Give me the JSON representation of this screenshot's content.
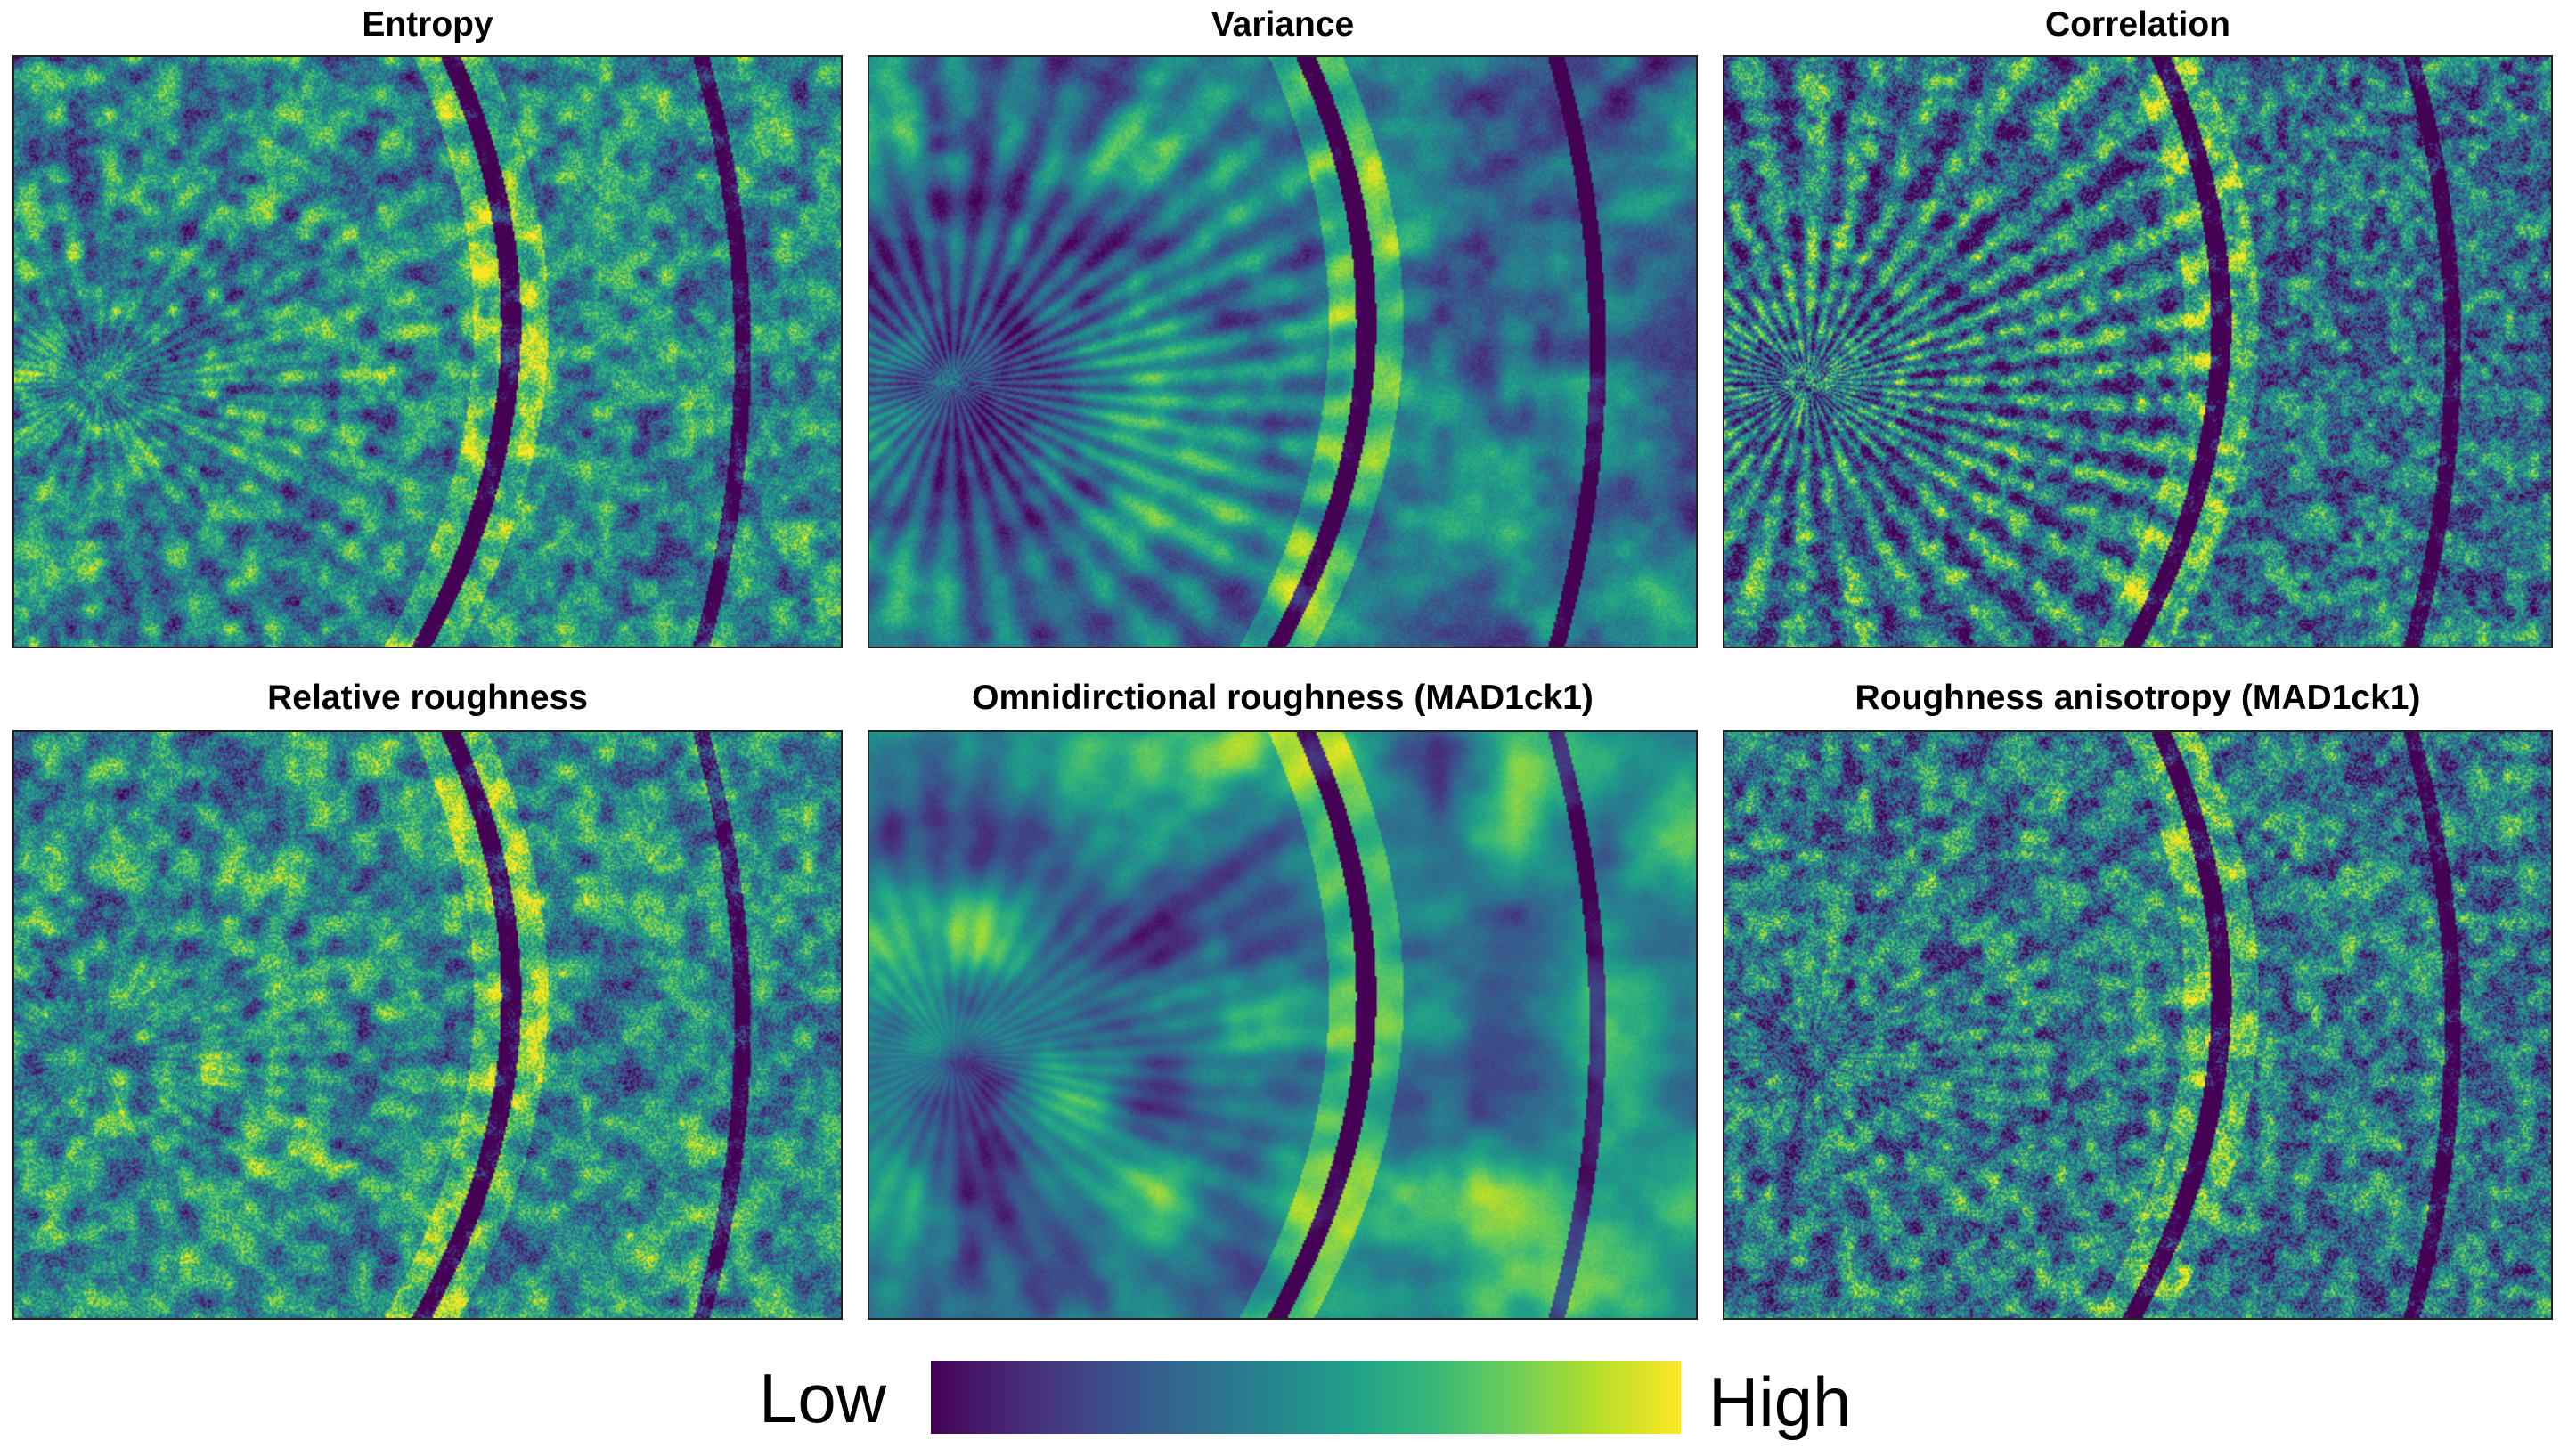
{
  "figure": {
    "panels": [
      {
        "title": "Entropy",
        "colormap": "viridis"
      },
      {
        "title": "Variance",
        "colormap": "viridis"
      },
      {
        "title": "Correlation",
        "colormap": "viridis"
      },
      {
        "title": "Relative roughness",
        "colormap": "viridis"
      },
      {
        "title": "Omnidirctional roughness (MAD1ck1)",
        "colormap": "viridis"
      },
      {
        "title": "Roughness anisotropy (MAD1ck1)",
        "colormap": "viridis"
      }
    ],
    "legend": {
      "low_label": "Low",
      "high_label": "High",
      "colors": [
        "#440154",
        "#482878",
        "#3e4989",
        "#31688e",
        "#26828e",
        "#1f9e89",
        "#35b779",
        "#6ece58",
        "#b5de2b",
        "#fde725"
      ]
    }
  }
}
